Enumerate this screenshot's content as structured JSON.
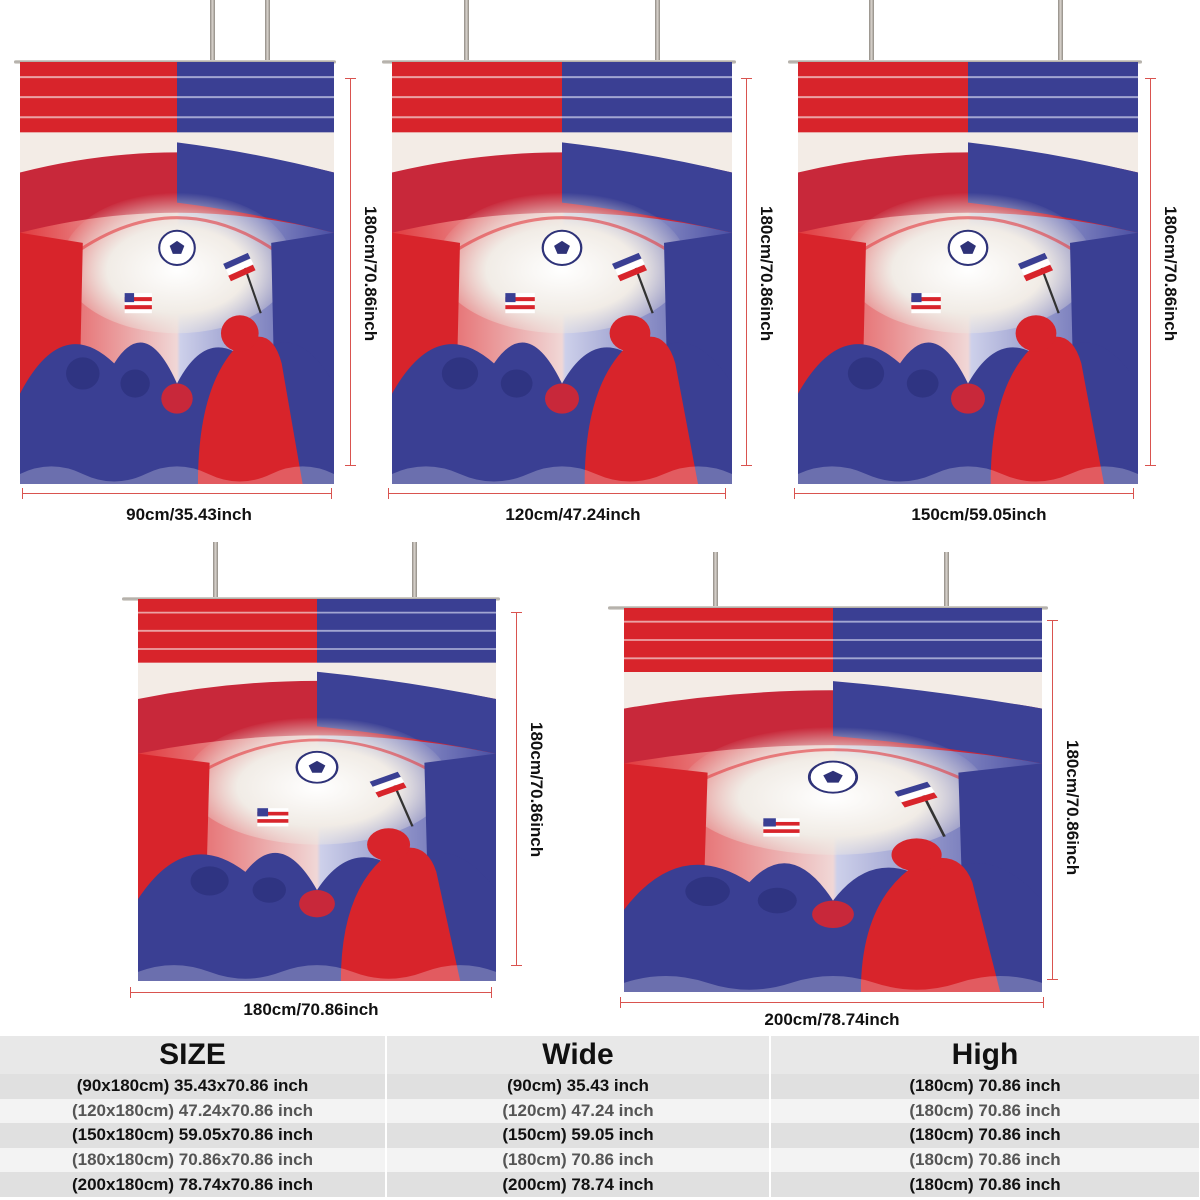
{
  "colors": {
    "red": "#d8242b",
    "blue": "#3a3f93",
    "dimension_line": "#d9534f",
    "table_row_dark": "#e0e0e0",
    "table_row_light": "#f3f3f3"
  },
  "artwork": {
    "subject": "stadium fans with flags and soccer ball",
    "icons": [
      "soccer-ball-icon",
      "flag-icon"
    ]
  },
  "curtains": [
    {
      "width_label": "90cm/35.43inch",
      "height_label": "180cm/70.86inch"
    },
    {
      "width_label": "120cm/47.24inch",
      "height_label": "180cm/70.86inch"
    },
    {
      "width_label": "150cm/59.05inch",
      "height_label": "180cm/70.86inch"
    },
    {
      "width_label": "180cm/70.86inch",
      "height_label": "180cm/70.86inch"
    },
    {
      "width_label": "200cm/78.74inch",
      "height_label": "180cm/70.86inch"
    }
  ],
  "size_table": {
    "headers": [
      "SIZE",
      "Wide",
      "High"
    ],
    "rows": [
      [
        "(90x180cm) 35.43x70.86 inch",
        "(90cm) 35.43 inch",
        "(180cm) 70.86 inch"
      ],
      [
        "(120x180cm) 47.24x70.86 inch",
        "(120cm) 47.24 inch",
        "(180cm) 70.86 inch"
      ],
      [
        "(150x180cm) 59.05x70.86 inch",
        "(150cm) 59.05 inch",
        "(180cm) 70.86 inch"
      ],
      [
        "(180x180cm) 70.86x70.86 inch",
        "(180cm) 70.86 inch",
        "(180cm) 70.86 inch"
      ],
      [
        "(200x180cm) 78.74x70.86 inch",
        "(200cm) 78.74 inch",
        "(180cm) 70.86 inch"
      ]
    ]
  }
}
